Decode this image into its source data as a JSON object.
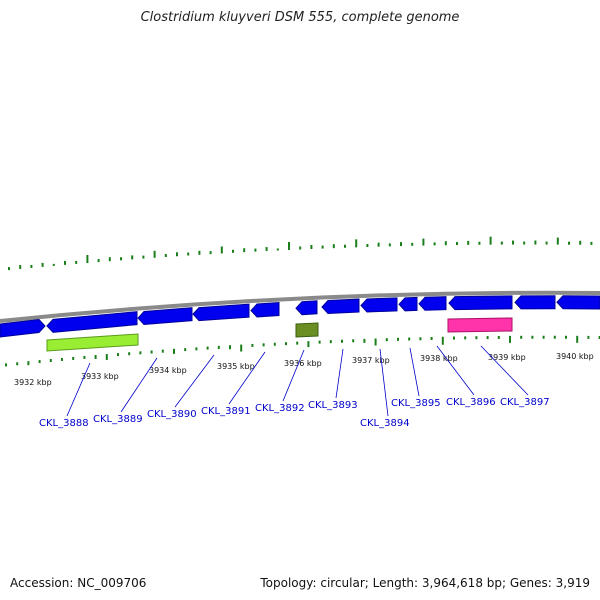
{
  "title": "Clostridium kluyveri DSM 555, complete genome",
  "footer": {
    "accession": "Accession: NC_009706",
    "summary": "Topology: circular; Length: 3,964,618 bp; Genes: 3,919"
  },
  "colors": {
    "backbone": "#8a8a8a",
    "cds": "#0000ee",
    "gc_tick": "#1a7f1a",
    "feature_lime": "#99ee33",
    "feature_olive": "#6b8e23",
    "feature_pink": "#ff33aa",
    "label": "#0000cc"
  },
  "scale": {
    "unit": "kbp",
    "ticks": [
      "3932 kbp",
      "3933 kbp",
      "3934 kbp",
      "3935 kbp",
      "3936 kbp",
      "3937 kbp",
      "3938 kbp",
      "3939 kbp",
      "3940 kbp"
    ]
  },
  "genes": [
    {
      "name": "CKL_3888"
    },
    {
      "name": "CKL_3889"
    },
    {
      "name": "CKL_3890"
    },
    {
      "name": "CKL_3891"
    },
    {
      "name": "CKL_3892"
    },
    {
      "name": "CKL_3893"
    },
    {
      "name": "CKL_3894"
    },
    {
      "name": "CKL_3895"
    },
    {
      "name": "CKL_3896"
    },
    {
      "name": "CKL_3897"
    }
  ]
}
